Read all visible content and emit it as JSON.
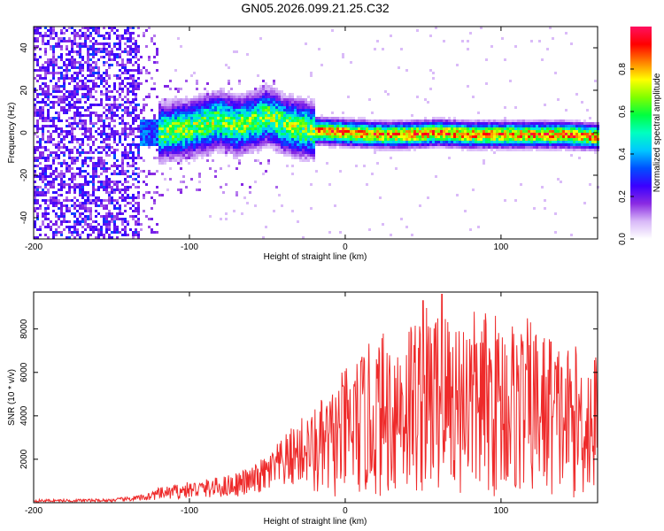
{
  "title": "GN05.2026.099.21.25.C32",
  "chart_data": [
    {
      "type": "heatmap",
      "id": "spectrogram",
      "xlabel": "Height of straight line (km)",
      "ylabel": "Frequency (Hz)",
      "xlim": [
        -200,
        162
      ],
      "ylim": [
        -50,
        50
      ],
      "xticks": [
        -200,
        -100,
        0,
        100
      ],
      "yticks": [
        -40,
        -20,
        0,
        20,
        40
      ],
      "colorbar": {
        "label": "Normalized spectral amplitude",
        "range": [
          0,
          1
        ],
        "ticks": [
          "0.0",
          "0.2",
          "0.4",
          "0.6",
          "0.8"
        ],
        "colormap": [
          "#ffffff",
          "#d8b8f8",
          "#8a2be2",
          "#3a00ff",
          "#0050ff",
          "#00c8ff",
          "#00ffc0",
          "#00ff40",
          "#80ff00",
          "#ffff00",
          "#ff8000",
          "#ff0000",
          "#ff1060"
        ]
      },
      "ridge": {
        "x": [
          -130,
          -120,
          -110,
          -100,
          -90,
          -80,
          -70,
          -60,
          -50,
          -40,
          -30,
          -20,
          0,
          20,
          40,
          60,
          80,
          100,
          120,
          140,
          162
        ],
        "freq": [
          0,
          0,
          1,
          2,
          4,
          6,
          3,
          5,
          8,
          4,
          2,
          1,
          0,
          -1,
          -1,
          0,
          -1,
          -1,
          -1,
          -1,
          -2
        ]
      }
    },
    {
      "type": "line",
      "id": "snr",
      "xlabel": "Height of straight line (km)",
      "ylabel": "SNR (10 * v/v)",
      "xlim": [
        -200,
        162
      ],
      "ylim": [
        0,
        9700
      ],
      "xticks": [
        -200,
        -100,
        0,
        100
      ],
      "yticks": [
        2000,
        4000,
        6000,
        8000
      ],
      "color": "#ee2a2a",
      "envelope": {
        "x": [
          -200,
          -150,
          -130,
          -120,
          -100,
          -80,
          -60,
          -50,
          -40,
          -30,
          -20,
          -10,
          0,
          20,
          40,
          60,
          80,
          100,
          120,
          140,
          162
        ],
        "y": [
          100,
          120,
          250,
          450,
          650,
          800,
          1100,
          1500,
          2000,
          2600,
          2800,
          3200,
          3900,
          4800,
          5500,
          5800,
          5600,
          5500,
          5300,
          4600,
          4400
        ]
      },
      "peaks": [
        {
          "x": 50,
          "y": 9300
        },
        {
          "x": 62,
          "y": 9600
        },
        {
          "x": 78,
          "y": 7500
        },
        {
          "x": 132,
          "y": 7400
        }
      ]
    }
  ]
}
